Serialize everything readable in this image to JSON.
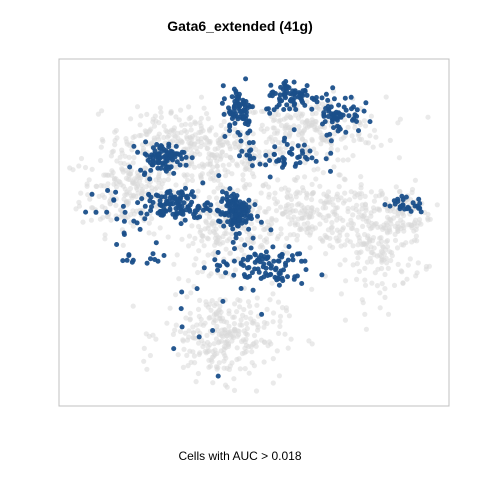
{
  "chart_data": {
    "type": "scatter",
    "title": "Gata6_extended (41g)",
    "xlabel": "Cells with AUC > 0.018",
    "ylabel": "",
    "xlim": [
      0,
      100
    ],
    "ylim": [
      0,
      100
    ],
    "grid": false,
    "axes_ticks": false,
    "colors": {
      "background_cells": "#d9d9d9",
      "highlighted_cells": "#1a4f8a",
      "box": "#c0c0c0"
    },
    "background_clusters": [
      {
        "cx": 18,
        "cy": 62,
        "rx": 11,
        "ry": 10,
        "n": 220
      },
      {
        "cx": 40,
        "cy": 72,
        "rx": 14,
        "ry": 9,
        "n": 220
      },
      {
        "cx": 65,
        "cy": 80,
        "rx": 16,
        "ry": 8,
        "n": 220
      },
      {
        "cx": 62,
        "cy": 56,
        "rx": 12,
        "ry": 9,
        "n": 200
      },
      {
        "cx": 82,
        "cy": 48,
        "rx": 10,
        "ry": 14,
        "n": 220
      },
      {
        "cx": 42,
        "cy": 50,
        "rx": 10,
        "ry": 9,
        "n": 160
      },
      {
        "cx": 42,
        "cy": 20,
        "rx": 13,
        "ry": 11,
        "n": 280
      },
      {
        "cx": 25,
        "cy": 78,
        "rx": 10,
        "ry": 7,
        "n": 120
      },
      {
        "cx": 90,
        "cy": 55,
        "rx": 5,
        "ry": 6,
        "n": 60
      }
    ],
    "highlight_clusters": [
      {
        "cx": 46,
        "cy": 86,
        "rx": 3.5,
        "ry": 6,
        "n": 70
      },
      {
        "cx": 60,
        "cy": 90,
        "rx": 6,
        "ry": 4,
        "n": 75
      },
      {
        "cx": 72,
        "cy": 85,
        "rx": 5,
        "ry": 5,
        "n": 60
      },
      {
        "cx": 26,
        "cy": 72,
        "rx": 5,
        "ry": 3.5,
        "n": 90
      },
      {
        "cx": 30,
        "cy": 58,
        "rx": 7,
        "ry": 4,
        "n": 110
      },
      {
        "cx": 45,
        "cy": 56,
        "rx": 3.5,
        "ry": 5,
        "n": 120
      },
      {
        "cx": 52,
        "cy": 40,
        "rx": 11,
        "ry": 5,
        "n": 100
      },
      {
        "cx": 57,
        "cy": 73,
        "rx": 9,
        "ry": 5,
        "n": 55
      },
      {
        "cx": 89,
        "cy": 58,
        "rx": 4.5,
        "ry": 2,
        "n": 28
      },
      {
        "cx": 18,
        "cy": 58,
        "rx": 9,
        "ry": 7,
        "n": 22
      },
      {
        "cx": 20,
        "cy": 42,
        "rx": 7,
        "ry": 5,
        "n": 14
      },
      {
        "cx": 40,
        "cy": 30,
        "rx": 12,
        "ry": 12,
        "n": 10
      }
    ]
  }
}
